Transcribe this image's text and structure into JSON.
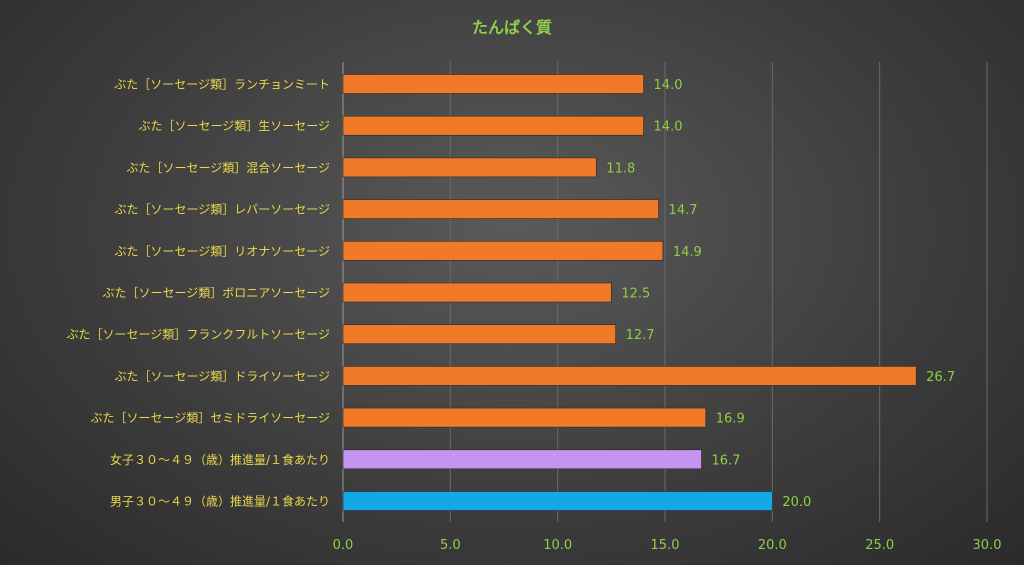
{
  "chart_data": {
    "type": "bar",
    "orientation": "horizontal",
    "title": "たんぱく質",
    "categories": [
      "ぶた［ソーセージ類］ランチョンミート",
      "ぶた［ソーセージ類］生ソーセージ",
      "ぶた［ソーセージ類］混合ソーセージ",
      "ぶた［ソーセージ類］レバーソーセージ",
      "ぶた［ソーセージ類］リオナソーセージ",
      "ぶた［ソーセージ類］ボロニアソーセージ",
      "ぶた［ソーセージ類］フランクフルトソーセージ",
      "ぶた［ソーセージ類］ドライソーセージ",
      "ぶた［ソーセージ類］セミドライソーセージ",
      "女子３０～４９（歳）推進量/１食あたり",
      "男子３０～４９（歳）推進量/１食あたり"
    ],
    "values": [
      14.0,
      14.0,
      11.8,
      14.7,
      14.9,
      12.5,
      12.7,
      26.7,
      16.9,
      16.7,
      20.0
    ],
    "value_labels": [
      "14.0",
      "14.0",
      "11.8",
      "14.7",
      "14.9",
      "12.5",
      "12.7",
      "26.7",
      "16.9",
      "16.7",
      "20.0"
    ],
    "bar_colors": [
      "#f07a28",
      "#f07a28",
      "#f07a28",
      "#f07a28",
      "#f07a28",
      "#f07a28",
      "#f07a28",
      "#f07a28",
      "#f07a28",
      "#c593f0",
      "#12a9e6"
    ],
    "xlim": [
      0,
      30
    ],
    "xticks": [
      0,
      5,
      10,
      15,
      20,
      25,
      30
    ],
    "xtick_labels": [
      "0.0",
      "5.0",
      "10.0",
      "15.0",
      "20.0",
      "25.0",
      "30.0"
    ],
    "grid": true,
    "legend": "none"
  }
}
